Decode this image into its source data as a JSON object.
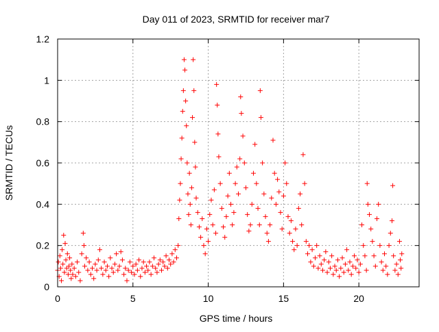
{
  "chart_data": {
    "type": "scatter",
    "title": "Day 011 of 2023, SRMTID for receiver mar7",
    "xlabel": "GPS time / hours",
    "ylabel": "SRMTID / TECUs",
    "xlim": [
      0,
      24
    ],
    "ylim": [
      0,
      1.2
    ],
    "x_ticks": [
      0,
      5,
      10,
      15,
      20
    ],
    "x_tick_labels": [
      "0",
      "5",
      "10",
      "15",
      "20"
    ],
    "y_ticks": [
      0,
      0.2,
      0.4,
      0.6,
      0.8,
      1.0,
      1.2
    ],
    "y_tick_labels": [
      "0",
      "0.2",
      "0.4",
      "0.6",
      "0.8",
      "1",
      "1.2"
    ],
    "grid": true,
    "marker": "+",
    "series": [
      {
        "name": "SRMTID",
        "color": "#ff0000",
        "points": [
          [
            0.0,
            0.08
          ],
          [
            0.05,
            0.12
          ],
          [
            0.1,
            0.05
          ],
          [
            0.15,
            0.15
          ],
          [
            0.2,
            0.09
          ],
          [
            0.25,
            0.03
          ],
          [
            0.3,
            0.18
          ],
          [
            0.35,
            0.11
          ],
          [
            0.4,
            0.25
          ],
          [
            0.45,
            0.07
          ],
          [
            0.5,
            0.21
          ],
          [
            0.55,
            0.13
          ],
          [
            0.6,
            0.09
          ],
          [
            0.65,
            0.16
          ],
          [
            0.7,
            0.06
          ],
          [
            0.75,
            0.1
          ],
          [
            0.8,
            0.14
          ],
          [
            0.85,
            0.08
          ],
          [
            0.9,
            0.04
          ],
          [
            0.95,
            0.11
          ],
          [
            1.0,
            0.06
          ],
          [
            1.1,
            0.09
          ],
          [
            1.2,
            0.05
          ],
          [
            1.3,
            0.12
          ],
          [
            1.4,
            0.07
          ],
          [
            1.5,
            0.03
          ],
          [
            1.6,
            0.16
          ],
          [
            1.7,
            0.26
          ],
          [
            1.75,
            0.2
          ],
          [
            1.8,
            0.1
          ],
          [
            1.9,
            0.14
          ],
          [
            2.0,
            0.08
          ],
          [
            2.1,
            0.12
          ],
          [
            2.2,
            0.06
          ],
          [
            2.3,
            0.09
          ],
          [
            2.4,
            0.04
          ],
          [
            2.5,
            0.11
          ],
          [
            2.6,
            0.08
          ],
          [
            2.7,
            0.13
          ],
          [
            2.8,
            0.18
          ],
          [
            2.9,
            0.09
          ],
          [
            3.0,
            0.06
          ],
          [
            3.1,
            0.12
          ],
          [
            3.2,
            0.08
          ],
          [
            3.3,
            0.1
          ],
          [
            3.4,
            0.05
          ],
          [
            3.5,
            0.14
          ],
          [
            3.6,
            0.09
          ],
          [
            3.7,
            0.07
          ],
          [
            3.8,
            0.11
          ],
          [
            3.9,
            0.16
          ],
          [
            4.0,
            0.08
          ],
          [
            4.1,
            0.1
          ],
          [
            4.2,
            0.17
          ],
          [
            4.3,
            0.13
          ],
          [
            4.4,
            0.06
          ],
          [
            4.5,
            0.09
          ],
          [
            4.6,
            0.03
          ],
          [
            4.7,
            0.08
          ],
          [
            4.8,
            0.12
          ],
          [
            4.9,
            0.07
          ],
          [
            5.0,
            0.1
          ],
          [
            5.1,
            0.06
          ],
          [
            5.2,
            0.11
          ],
          [
            5.3,
            0.08
          ],
          [
            5.4,
            0.13
          ],
          [
            5.5,
            0.05
          ],
          [
            5.6,
            0.09
          ],
          [
            5.7,
            0.12
          ],
          [
            5.8,
            0.07
          ],
          [
            5.9,
            0.1
          ],
          [
            6.0,
            0.08
          ],
          [
            6.1,
            0.12
          ],
          [
            6.2,
            0.06
          ],
          [
            6.3,
            0.1
          ],
          [
            6.4,
            0.14
          ],
          [
            6.5,
            0.09
          ],
          [
            6.6,
            0.07
          ],
          [
            6.7,
            0.11
          ],
          [
            6.8,
            0.13
          ],
          [
            6.9,
            0.08
          ],
          [
            7.0,
            0.12
          ],
          [
            7.1,
            0.1
          ],
          [
            7.2,
            0.15
          ],
          [
            7.3,
            0.09
          ],
          [
            7.4,
            0.13
          ],
          [
            7.5,
            0.11
          ],
          [
            7.6,
            0.16
          ],
          [
            7.7,
            0.12
          ],
          [
            7.8,
            0.18
          ],
          [
            7.9,
            0.14
          ],
          [
            8.0,
            0.2
          ],
          [
            8.05,
            0.33
          ],
          [
            8.1,
            0.42
          ],
          [
            8.15,
            0.5
          ],
          [
            8.2,
            0.62
          ],
          [
            8.25,
            0.72
          ],
          [
            8.3,
            0.85
          ],
          [
            8.35,
            0.95
          ],
          [
            8.4,
            1.1
          ],
          [
            8.45,
            1.05
          ],
          [
            8.5,
            0.9
          ],
          [
            8.55,
            0.78
          ],
          [
            8.6,
            0.6
          ],
          [
            8.65,
            0.45
          ],
          [
            8.7,
            0.35
          ],
          [
            8.75,
            0.55
          ],
          [
            8.8,
            0.4
          ],
          [
            8.85,
            0.3
          ],
          [
            8.9,
            0.48
          ],
          [
            8.95,
            0.82
          ],
          [
            9.0,
            1.1
          ],
          [
            9.05,
            0.95
          ],
          [
            9.1,
            0.7
          ],
          [
            9.15,
            0.58
          ],
          [
            9.2,
            0.43
          ],
          [
            9.3,
            0.36
          ],
          [
            9.4,
            0.29
          ],
          [
            9.5,
            0.24
          ],
          [
            9.6,
            0.33
          ],
          [
            9.7,
            0.2
          ],
          [
            9.8,
            0.16
          ],
          [
            9.9,
            0.28
          ],
          [
            10.0,
            0.22
          ],
          [
            10.1,
            0.35
          ],
          [
            10.2,
            0.42
          ],
          [
            10.3,
            0.3
          ],
          [
            10.4,
            0.47
          ],
          [
            10.5,
            0.26
          ],
          [
            10.55,
            0.98
          ],
          [
            10.6,
            0.88
          ],
          [
            10.65,
            0.74
          ],
          [
            10.7,
            0.63
          ],
          [
            10.8,
            0.5
          ],
          [
            10.9,
            0.38
          ],
          [
            11.0,
            0.29
          ],
          [
            11.1,
            0.24
          ],
          [
            11.2,
            0.34
          ],
          [
            11.3,
            0.44
          ],
          [
            11.4,
            0.55
          ],
          [
            11.5,
            0.4
          ],
          [
            11.6,
            0.3
          ],
          [
            11.7,
            0.36
          ],
          [
            11.8,
            0.5
          ],
          [
            11.9,
            0.58
          ],
          [
            12.0,
            0.45
          ],
          [
            12.1,
            0.62
          ],
          [
            12.15,
            0.92
          ],
          [
            12.2,
            0.84
          ],
          [
            12.3,
            0.73
          ],
          [
            12.4,
            0.6
          ],
          [
            12.5,
            0.48
          ],
          [
            12.6,
            0.35
          ],
          [
            12.7,
            0.27
          ],
          [
            12.8,
            0.3
          ],
          [
            12.9,
            0.4
          ],
          [
            13.0,
            0.55
          ],
          [
            13.1,
            0.69
          ],
          [
            13.2,
            0.5
          ],
          [
            13.3,
            0.38
          ],
          [
            13.4,
            0.3
          ],
          [
            13.45,
            0.95
          ],
          [
            13.5,
            0.82
          ],
          [
            13.6,
            0.6
          ],
          [
            13.7,
            0.45
          ],
          [
            13.8,
            0.34
          ],
          [
            13.9,
            0.26
          ],
          [
            14.0,
            0.22
          ],
          [
            14.1,
            0.3
          ],
          [
            14.2,
            0.43
          ],
          [
            14.3,
            0.71
          ],
          [
            14.4,
            0.55
          ],
          [
            14.5,
            0.4
          ],
          [
            14.6,
            0.52
          ],
          [
            14.7,
            0.46
          ],
          [
            14.8,
            0.36
          ],
          [
            14.9,
            0.28
          ],
          [
            15.0,
            0.44
          ],
          [
            15.1,
            0.6
          ],
          [
            15.2,
            0.5
          ],
          [
            15.3,
            0.34
          ],
          [
            15.4,
            0.26
          ],
          [
            15.5,
            0.32
          ],
          [
            15.6,
            0.22
          ],
          [
            15.7,
            0.18
          ],
          [
            15.8,
            0.28
          ],
          [
            15.9,
            0.2
          ],
          [
            16.0,
            0.38
          ],
          [
            16.1,
            0.45
          ],
          [
            16.2,
            0.3
          ],
          [
            16.3,
            0.64
          ],
          [
            16.4,
            0.5
          ],
          [
            16.5,
            0.22
          ],
          [
            16.6,
            0.16
          ],
          [
            16.7,
            0.2
          ],
          [
            16.8,
            0.12
          ],
          [
            16.9,
            0.18
          ],
          [
            17.0,
            0.1
          ],
          [
            17.1,
            0.14
          ],
          [
            17.2,
            0.2
          ],
          [
            17.3,
            0.09
          ],
          [
            17.4,
            0.15
          ],
          [
            17.5,
            0.11
          ],
          [
            17.6,
            0.08
          ],
          [
            17.7,
            0.13
          ],
          [
            17.8,
            0.17
          ],
          [
            17.9,
            0.07
          ],
          [
            18.0,
            0.12
          ],
          [
            18.1,
            0.09
          ],
          [
            18.2,
            0.15
          ],
          [
            18.3,
            0.06
          ],
          [
            18.4,
            0.1
          ],
          [
            18.5,
            0.08
          ],
          [
            18.6,
            0.13
          ],
          [
            18.7,
            0.05
          ],
          [
            18.8,
            0.09
          ],
          [
            18.9,
            0.14
          ],
          [
            19.0,
            0.07
          ],
          [
            19.1,
            0.11
          ],
          [
            19.2,
            0.18
          ],
          [
            19.3,
            0.08
          ],
          [
            19.4,
            0.12
          ],
          [
            19.5,
            0.06
          ],
          [
            19.6,
            0.1
          ],
          [
            19.7,
            0.15
          ],
          [
            19.8,
            0.09
          ],
          [
            19.9,
            0.13
          ],
          [
            20.0,
            0.07
          ],
          [
            20.1,
            0.11
          ],
          [
            20.2,
            0.3
          ],
          [
            20.3,
            0.2
          ],
          [
            20.4,
            0.15
          ],
          [
            20.5,
            0.08
          ],
          [
            20.55,
            0.5
          ],
          [
            20.6,
            0.4
          ],
          [
            20.7,
            0.35
          ],
          [
            20.8,
            0.28
          ],
          [
            20.9,
            0.22
          ],
          [
            21.0,
            0.15
          ],
          [
            21.1,
            0.1
          ],
          [
            21.2,
            0.33
          ],
          [
            21.3,
            0.4
          ],
          [
            21.4,
            0.2
          ],
          [
            21.5,
            0.12
          ],
          [
            21.6,
            0.08
          ],
          [
            21.7,
            0.16
          ],
          [
            21.8,
            0.1
          ],
          [
            21.9,
            0.06
          ],
          [
            22.0,
            0.2
          ],
          [
            22.1,
            0.26
          ],
          [
            22.2,
            0.32
          ],
          [
            22.25,
            0.49
          ],
          [
            22.3,
            0.15
          ],
          [
            22.4,
            0.08
          ],
          [
            22.5,
            0.11
          ],
          [
            22.6,
            0.06
          ],
          [
            22.7,
            0.22
          ],
          [
            22.75,
            0.13
          ],
          [
            22.8,
            0.09
          ],
          [
            22.85,
            0.16
          ]
        ]
      }
    ]
  }
}
